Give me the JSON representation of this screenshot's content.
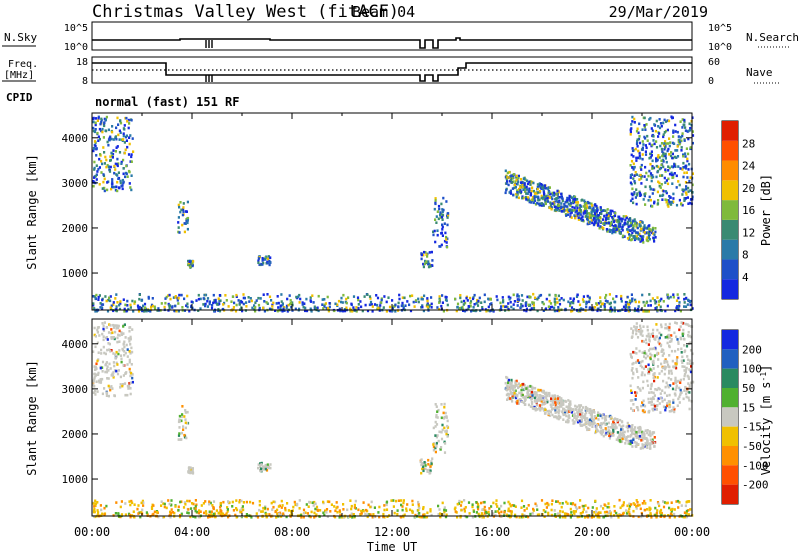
{
  "header": {
    "site": "Christmas Valley West (fitACF)",
    "beam": "Beam 04",
    "date": "29/Mar/2019"
  },
  "strip_labels": {
    "nsky": "N.Sky",
    "nsearch": "N.Search",
    "freq_line1": "Freq.",
    "freq_line2": "[MHz]",
    "nave": "Nave",
    "cpid": "CPID",
    "cpid_value": "normal (fast) 151 RF",
    "nsky_ticks": [
      "10^5",
      "10^0"
    ],
    "nsearch_ticks": [
      "10^5",
      "10^0"
    ],
    "freq_ticks": [
      "18",
      "8"
    ],
    "nave_ticks": [
      "60",
      "0"
    ]
  },
  "colors": {
    "power_scale": [
      "#1428e0",
      "#1e50c8",
      "#2a7aa8",
      "#3a8a72",
      "#7fba3c",
      "#f0c000",
      "#ff8c00",
      "#ff5000",
      "#e01e00"
    ],
    "velocity_scale": [
      "#1428e0",
      "#2060c0",
      "#2a8a60",
      "#50b030",
      "#c8c8c0",
      "#f0c000",
      "#ff9000",
      "#ff5000",
      "#e01e00"
    ],
    "ground_scatter": "#c8c8c0"
  },
  "chart_data": [
    {
      "type": "heatmap",
      "name": "power-panel",
      "xlabel": "",
      "ylabel": "Slant Range [km]",
      "x_range_hours": [
        0,
        24
      ],
      "ylim": [
        180,
        4550
      ],
      "yticks": [
        "1000",
        "2000",
        "3000",
        "4000"
      ],
      "colorbar": {
        "label": "Power [dB]",
        "ticks": [
          "4",
          "8",
          "12",
          "16",
          "20",
          "24",
          "28"
        ]
      },
      "echo_regions": [
        {
          "name": "near-range-band",
          "time_hours": [
            0.0,
            24.0
          ],
          "range_km": [
            180,
            560
          ]
        },
        {
          "name": "early-high-range",
          "time_hours": [
            0.0,
            1.6
          ],
          "range_km": [
            2850,
            4500
          ]
        },
        {
          "name": "patch-0330",
          "time_hours": [
            3.4,
            3.8
          ],
          "range_km": [
            1900,
            2650
          ]
        },
        {
          "name": "patch-0400",
          "time_hours": [
            3.8,
            4.0
          ],
          "range_km": [
            1150,
            1300
          ]
        },
        {
          "name": "patch-0640",
          "time_hours": [
            6.6,
            7.1
          ],
          "range_km": [
            1200,
            1400
          ]
        },
        {
          "name": "patch-1330",
          "time_hours": [
            13.1,
            13.6
          ],
          "range_km": [
            1150,
            1500
          ]
        },
        {
          "name": "patch-1400",
          "time_hours": [
            13.6,
            14.2
          ],
          "range_km": [
            1600,
            2700
          ]
        },
        {
          "name": "evening-arc",
          "time_hours": [
            16.5,
            22.5
          ],
          "range_km": [
            1700,
            3200
          ]
        },
        {
          "name": "late-high-range",
          "time_hours": [
            21.5,
            24.0
          ],
          "range_km": [
            2500,
            4500
          ]
        }
      ]
    },
    {
      "type": "heatmap",
      "name": "velocity-panel",
      "xlabel": "Time UT",
      "ylabel": "Slant Range [km]",
      "x_range_hours": [
        0,
        24
      ],
      "xticks": [
        "00:00",
        "04:00",
        "08:00",
        "12:00",
        "16:00",
        "20:00",
        "00:00"
      ],
      "ylim": [
        180,
        4550
      ],
      "yticks": [
        "1000",
        "2000",
        "3000",
        "4000"
      ],
      "colorbar": {
        "label": "Velocity [m s",
        "label_sup": "-1",
        "label_end": "]",
        "ticks": [
          "200",
          "100",
          "50",
          "15",
          "-15",
          "-50",
          "-100",
          "-200"
        ]
      }
    }
  ]
}
